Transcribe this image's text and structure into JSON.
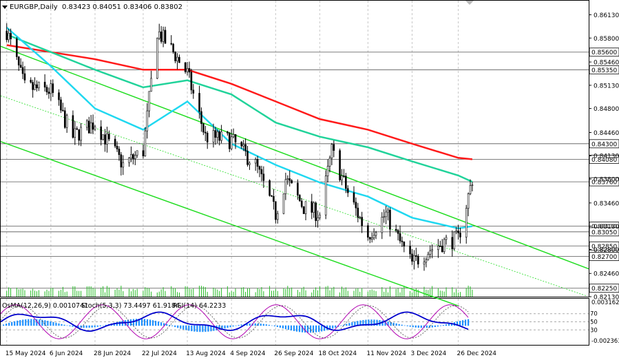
{
  "header": {
    "symbol": "EURGBP,Daily",
    "ohlc": "0.83423 0.84051 0.83406 0.83802"
  },
  "indicator_header": {
    "osma": "OsMA(12,26,9) 0.0010741",
    "stoch": "Stoch(5,3,3) 73.4497 61.9184",
    "rsi": "RSI(14) 64.2233"
  },
  "chart_data": {
    "type": "line",
    "symbol": "EURGBP",
    "timeframe": "Daily",
    "price_axis": {
      "ylim": [
        0.8213,
        0.8633
      ],
      "ticks": [
        "0.86130",
        "0.85800",
        "0.85460",
        "0.85130",
        "0.84800",
        "0.84460",
        "0.84130",
        "0.83800",
        "0.83460",
        "0.83130",
        "0.82800",
        "0.82460",
        "0.82130"
      ],
      "levels": [
        {
          "label": "0.85600",
          "value": 0.856
        },
        {
          "label": "0.85350",
          "value": 0.8535
        },
        {
          "label": "0.84300",
          "value": 0.843
        },
        {
          "label": "0.84080",
          "value": 0.8408
        },
        {
          "label": "0.83760",
          "value": 0.8376
        },
        {
          "label": "0.83130",
          "value": 0.8313
        },
        {
          "label": "0.83050",
          "value": 0.8305
        },
        {
          "label": "0.82850",
          "value": 0.8285
        },
        {
          "label": "0.82700",
          "value": 0.827
        },
        {
          "label": "0.82250",
          "value": 0.8225
        }
      ]
    },
    "date_axis": [
      "15 May 2024",
      "6 Jun 2024",
      "28 Jun 2024",
      "22 Jul 2024",
      "13 Aug 2024",
      "4 Sep 2024",
      "26 Sep 2024",
      "18 Oct 2024",
      "11 Nov 2024",
      "3 Dec 2024",
      "26 Dec 2024"
    ],
    "price_series": [
      {
        "x": "15 May 2024",
        "close": 0.859
      },
      {
        "x": "24 May 2024",
        "close": 0.851
      },
      {
        "x": "6 Jun 2024",
        "close": 0.8505
      },
      {
        "x": "17 Jun 2024",
        "close": 0.844
      },
      {
        "x": "28 Jun 2024",
        "close": 0.846
      },
      {
        "x": "12 Jul 2024",
        "close": 0.84
      },
      {
        "x": "22 Jul 2024",
        "close": 0.842
      },
      {
        "x": "29 Jul 2024",
        "close": 0.859
      },
      {
        "x": "6 Aug 2024",
        "close": 0.856
      },
      {
        "x": "13 Aug 2024",
        "close": 0.853
      },
      {
        "x": "22 Aug 2024",
        "close": 0.844
      },
      {
        "x": "4 Sep 2024",
        "close": 0.8435
      },
      {
        "x": "16 Sep 2024",
        "close": 0.84
      },
      {
        "x": "26 Sep 2024",
        "close": 0.833
      },
      {
        "x": "1 Oct 2024",
        "close": 0.838
      },
      {
        "x": "10 Oct 2024",
        "close": 0.834
      },
      {
        "x": "18 Oct 2024",
        "close": 0.833
      },
      {
        "x": "24 Oct 2024",
        "close": 0.842
      },
      {
        "x": "1 Nov 2024",
        "close": 0.836
      },
      {
        "x": "11 Nov 2024",
        "close": 0.83
      },
      {
        "x": "20 Nov 2024",
        "close": 0.833
      },
      {
        "x": "27 Nov 2024",
        "close": 0.829
      },
      {
        "x": "3 Dec 2024",
        "close": 0.826
      },
      {
        "x": "12 Dec 2024",
        "close": 0.828
      },
      {
        "x": "19 Dec 2024",
        "close": 0.829
      },
      {
        "x": "26 Dec 2024",
        "close": 0.8295
      },
      {
        "x": "2 Jan 2025",
        "close": 0.838
      }
    ],
    "moving_averages": [
      {
        "color": "#ff1a1a",
        "values": [
          {
            "x": "15 May 2024",
            "y": 0.857
          },
          {
            "x": "6 Jun 2024",
            "y": 0.856
          },
          {
            "x": "28 Jun 2024",
            "y": 0.855
          },
          {
            "x": "22 Jul 2024",
            "y": 0.8535
          },
          {
            "x": "13 Aug 2024",
            "y": 0.8535
          },
          {
            "x": "4 Sep 2024",
            "y": 0.8515
          },
          {
            "x": "26 Sep 2024",
            "y": 0.849
          },
          {
            "x": "18 Oct 2024",
            "y": 0.8465
          },
          {
            "x": "11 Nov 2024",
            "y": 0.845
          },
          {
            "x": "3 Dec 2024",
            "y": 0.843
          },
          {
            "x": "26 Dec 2024",
            "y": 0.841
          },
          {
            "x": "2 Jan 2025",
            "y": 0.8408
          }
        ]
      },
      {
        "color": "#21d39a",
        "values": [
          {
            "x": "15 May 2024",
            "y": 0.8585
          },
          {
            "x": "6 Jun 2024",
            "y": 0.856
          },
          {
            "x": "28 Jun 2024",
            "y": 0.8535
          },
          {
            "x": "22 Jul 2024",
            "y": 0.851
          },
          {
            "x": "13 Aug 2024",
            "y": 0.852
          },
          {
            "x": "4 Sep 2024",
            "y": 0.85
          },
          {
            "x": "26 Sep 2024",
            "y": 0.846
          },
          {
            "x": "18 Oct 2024",
            "y": 0.844
          },
          {
            "x": "11 Nov 2024",
            "y": 0.8425
          },
          {
            "x": "3 Dec 2024",
            "y": 0.8405
          },
          {
            "x": "26 Dec 2024",
            "y": 0.8385
          },
          {
            "x": "2 Jan 2025",
            "y": 0.8376
          }
        ]
      },
      {
        "color": "#20d8f0",
        "values": [
          {
            "x": "15 May 2024",
            "y": 0.8595
          },
          {
            "x": "6 Jun 2024",
            "y": 0.854
          },
          {
            "x": "28 Jun 2024",
            "y": 0.848
          },
          {
            "x": "22 Jul 2024",
            "y": 0.845
          },
          {
            "x": "13 Aug 2024",
            "y": 0.849
          },
          {
            "x": "4 Sep 2024",
            "y": 0.843
          },
          {
            "x": "26 Sep 2024",
            "y": 0.84
          },
          {
            "x": "18 Oct 2024",
            "y": 0.8375
          },
          {
            "x": "11 Nov 2024",
            "y": 0.8355
          },
          {
            "x": "3 Dec 2024",
            "y": 0.8325
          },
          {
            "x": "26 Dec 2024",
            "y": 0.831
          },
          {
            "x": "2 Jan 2025",
            "y": 0.8313
          }
        ]
      }
    ],
    "channel_lines": [
      {
        "color": "#22dd22",
        "points": [
          {
            "x": "15 May 2024",
            "y": 0.8565
          },
          {
            "x": "2 Jan 2025",
            "y": 0.8315
          }
        ]
      },
      {
        "color": "#22dd22",
        "points": [
          {
            "x": "15 May 2024",
            "y": 0.843
          },
          {
            "x": "26 Dec 2024",
            "y": 0.82
          }
        ]
      }
    ],
    "subwindow": {
      "ylim": [
        -0.0023,
        0.0031625
      ],
      "ticks": [
        "0.0031625",
        "-0.002363"
      ],
      "osc_levels": [
        "70",
        "50",
        "30"
      ],
      "ylim_osc": [
        0,
        100
      ]
    }
  }
}
